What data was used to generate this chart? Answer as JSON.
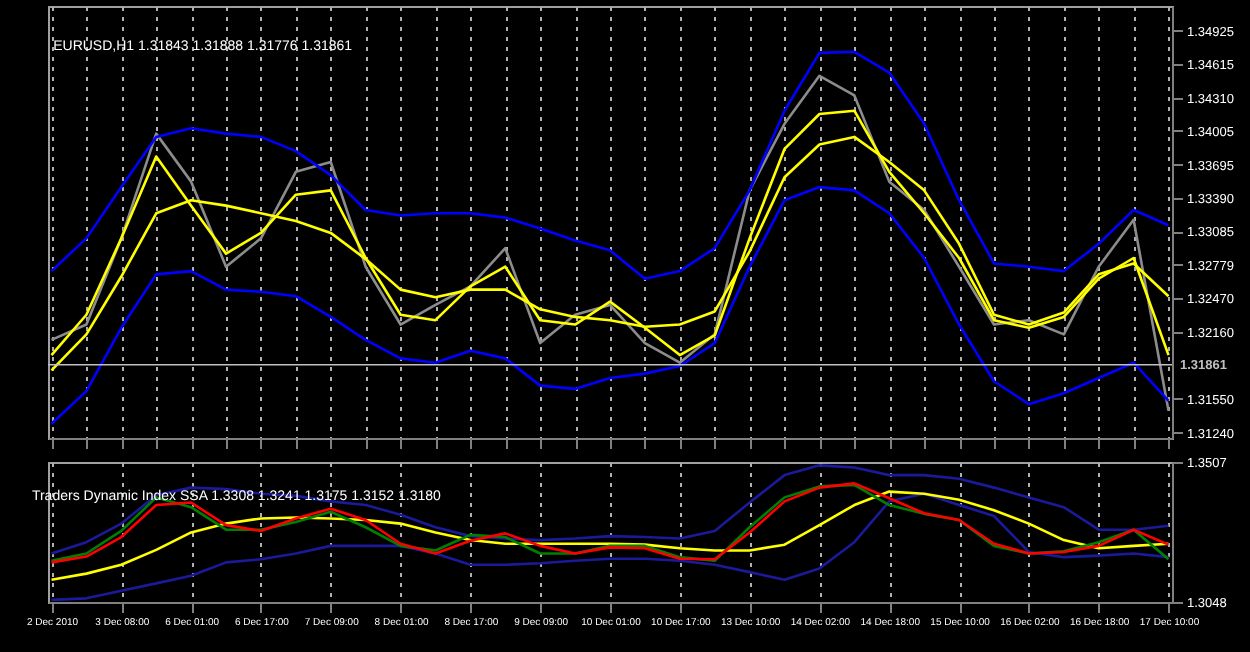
{
  "chart_data": [
    {
      "type": "line",
      "title": "EURUSD,H1  1.31843 1.31888 1.31776 1.31861",
      "categories": [
        null,
        null,
        null,
        null,
        null,
        null,
        null,
        null,
        null,
        null,
        null,
        null,
        null,
        null,
        null,
        null,
        null,
        null,
        null,
        null,
        null,
        null,
        null,
        null,
        null,
        null,
        null,
        null,
        null,
        null,
        null,
        null,
        null
      ],
      "ylim": [
        1.3119,
        1.3515
      ],
      "yticks": [
        {
          "value": 1.3124,
          "label": "1.31240"
        },
        {
          "value": 1.3155,
          "label": "1.31550"
        },
        {
          "value": 1.3216,
          "label": "1.32160"
        },
        {
          "value": 1.3247,
          "label": "1.32470"
        },
        1.32779,
        1.33085,
        {
          "value": 1.3339,
          "label": "1.33390"
        },
        1.33695,
        1.34005,
        {
          "value": 1.3431,
          "label": "1.34310"
        },
        1.34615,
        1.34925
      ],
      "series": [
        {
          "color": "#8c8c8c",
          "values": [
            1.3209,
            1.3223,
            1.3302,
            1.3398,
            1.3354,
            1.3276,
            1.3302,
            1.3363,
            1.3372,
            1.3276,
            1.3223,
            1.3241,
            1.3258,
            1.3293,
            1.3206,
            1.3232,
            1.3241,
            1.3206,
            1.3188,
            1.3214,
            1.3346,
            1.3407,
            1.3451,
            1.3433,
            1.3354,
            1.3328,
            1.3276,
            1.3223,
            1.3227,
            1.3214,
            1.3276,
            1.3319,
            1.3144
          ]
        },
        {
          "color": "#0000ff",
          "values": [
            1.3272,
            1.3302,
            1.3349,
            1.3395,
            1.3403,
            1.3398,
            1.3395,
            1.3382,
            1.336,
            1.3328,
            1.3323,
            1.3325,
            1.3325,
            1.3321,
            1.3311,
            1.33,
            1.3291,
            1.3265,
            1.3272,
            1.3293,
            1.3346,
            1.3419,
            1.3472,
            1.3473,
            1.3454,
            1.3407,
            1.3337,
            1.3279,
            1.3276,
            1.3272,
            1.3297,
            1.3328,
            1.3314
          ]
        },
        {
          "color": "#0000ff",
          "values": [
            1.3132,
            1.3162,
            1.322,
            1.3269,
            1.3272,
            1.3255,
            1.3253,
            1.3249,
            1.323,
            1.3209,
            1.3192,
            1.3188,
            1.3199,
            1.3192,
            1.3167,
            1.3164,
            1.3174,
            1.3178,
            1.3185,
            1.3206,
            1.3276,
            1.3337,
            1.3349,
            1.3346,
            1.3325,
            1.3284,
            1.3223,
            1.3171,
            1.315,
            1.316,
            1.3174,
            1.3188,
            1.3153
          ]
        },
        {
          "color": "#ffff00",
          "values": [
            1.3181,
            1.3214,
            1.3267,
            1.3325,
            1.3337,
            1.3332,
            1.3325,
            1.3318,
            1.3307,
            1.3283,
            1.3255,
            1.3248,
            1.3255,
            1.3255,
            1.3237,
            1.323,
            1.3227,
            1.3221,
            1.3223,
            1.3235,
            1.329,
            1.3358,
            1.3388,
            1.3395,
            1.3372,
            1.3346,
            1.3297,
            1.3232,
            1.3223,
            1.3234,
            1.3269,
            1.3279,
            1.3249
          ]
        },
        {
          "color": "#ffff00",
          "values": [
            1.3195,
            1.3232,
            1.3302,
            1.3377,
            1.3332,
            1.3288,
            1.3307,
            1.3342,
            1.3346,
            1.3284,
            1.3232,
            1.3227,
            1.3258,
            1.3276,
            1.3227,
            1.3223,
            1.3244,
            1.322,
            1.3195,
            1.3213,
            1.3302,
            1.3384,
            1.3416,
            1.3419,
            1.3363,
            1.3325,
            1.3284,
            1.3227,
            1.322,
            1.323,
            1.3265,
            1.3284,
            1.3195
          ]
        }
      ],
      "ref_lines": [
        {
          "axis": "y",
          "value": 1.31861,
          "label": "1.31861",
          "color": "#c0c0c0"
        }
      ],
      "grid": "x",
      "tick_labels": "y"
    },
    {
      "type": "line",
      "title": "Traders Dynamic Index SSA 1.3308 1.3241 1.3175 1.3152 1.3180",
      "categories": [
        "2 Dec 2010",
        null,
        "3 Dec 08:00",
        null,
        "6 Dec 01:00",
        null,
        "6 Dec 17:00",
        null,
        "7 Dec 09:00",
        null,
        "8 Dec 01:00",
        null,
        "8 Dec 17:00",
        null,
        "9 Dec 09:00",
        null,
        "10 Dec 01:00",
        null,
        "10 Dec 17:00",
        null,
        "13 Dec 10:00",
        null,
        "14 Dec 02:00",
        null,
        "14 Dec 18:00",
        null,
        "15 Dec 10:00",
        null,
        "16 Dec 02:00",
        null,
        "16 Dec 18:00",
        null,
        "17 Dec 10:00"
      ],
      "ylim": [
        1.3048,
        1.3507
      ],
      "yticks": [
        1.3048,
        1.3507
      ],
      "series": [
        {
          "color": "#1a1a9a",
          "values": [
            1.3207,
            1.3244,
            1.3305,
            1.3398,
            1.3423,
            1.3418,
            1.3403,
            1.3396,
            1.3378,
            1.3366,
            1.3334,
            1.3293,
            1.3264,
            1.3256,
            1.3251,
            1.3256,
            1.3264,
            1.3261,
            1.3256,
            1.3281,
            1.3374,
            1.3464,
            1.3496,
            1.3489,
            1.3464,
            1.3464,
            1.3452,
            1.3423,
            1.3391,
            1.3359,
            1.3285,
            1.3285,
            1.3298
          ]
        },
        {
          "color": "#1a1a9a",
          "values": [
            1.3055,
            1.306,
            1.3085,
            1.3109,
            1.3134,
            1.3178,
            1.3188,
            1.3207,
            1.3232,
            1.3232,
            1.3232,
            1.3207,
            1.317,
            1.317,
            1.3175,
            1.3183,
            1.319,
            1.319,
            1.3183,
            1.317,
            1.3146,
            1.3121,
            1.3158,
            1.3244,
            1.3378,
            1.3403,
            1.3366,
            1.333,
            1.3212,
            1.3195,
            1.32,
            1.3207,
            1.3195
          ]
        },
        {
          "color": "#ffff00",
          "values": [
            1.3121,
            1.3141,
            1.317,
            1.3219,
            1.3276,
            1.3305,
            1.3322,
            1.3325,
            1.3322,
            1.3317,
            1.3305,
            1.3276,
            1.3251,
            1.3239,
            1.3239,
            1.3239,
            1.3239,
            1.3236,
            1.3224,
            1.3217,
            1.3217,
            1.3236,
            1.33,
            1.3366,
            1.341,
            1.3403,
            1.3383,
            1.3349,
            1.3305,
            1.3251,
            1.3224,
            1.3232,
            1.3239
          ]
        },
        {
          "color": "#008000",
          "values": [
            1.3183,
            1.3207,
            1.3281,
            1.3391,
            1.3359,
            1.3285,
            1.3285,
            1.331,
            1.3344,
            1.3293,
            1.3232,
            1.3217,
            1.3268,
            1.3261,
            1.3207,
            1.3207,
            1.3232,
            1.3232,
            1.3195,
            1.3183,
            1.3293,
            1.3391,
            1.3427,
            1.3432,
            1.3366,
            1.3337,
            1.3317,
            1.3232,
            1.3207,
            1.3214,
            1.3244,
            1.3285,
            1.3188
          ]
        },
        {
          "color": "#ff0000",
          "values": [
            1.3178,
            1.3197,
            1.3261,
            1.3366,
            1.3374,
            1.33,
            1.3281,
            1.3322,
            1.3354,
            1.3317,
            1.3239,
            1.3207,
            1.3249,
            1.3273,
            1.3232,
            1.3207,
            1.3227,
            1.3224,
            1.319,
            1.3188,
            1.3276,
            1.3378,
            1.3423,
            1.3437,
            1.3388,
            1.3339,
            1.3317,
            1.3239,
            1.3207,
            1.3212,
            1.3232,
            1.3285,
            1.3236
          ]
        }
      ],
      "grid": "x"
    }
  ]
}
